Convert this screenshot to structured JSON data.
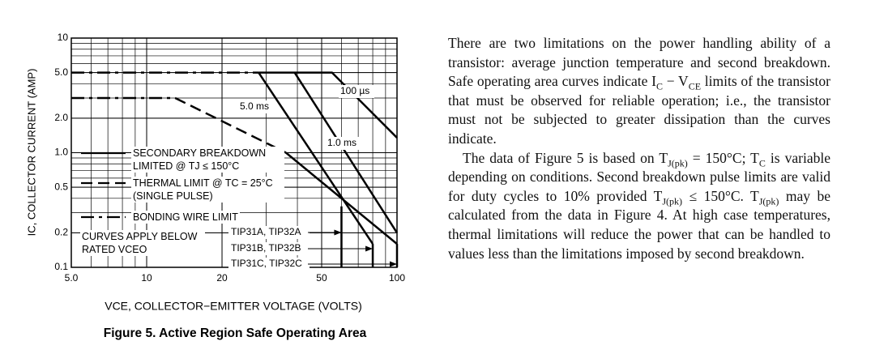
{
  "chart_data": {
    "type": "line",
    "log_x": true,
    "log_y": true,
    "xlabel": "VCE, COLLECTOR−EMITTER VOLTAGE (VOLTS)",
    "ylabel": "IC, COLLECTOR CURRENT (AMP)",
    "xlim": [
      5,
      100
    ],
    "ylim": [
      0.1,
      10
    ],
    "xticks": [
      {
        "value": 5,
        "label": "5.0"
      },
      10,
      20,
      50,
      100
    ],
    "yticks": [
      0.1,
      0.2,
      0.5,
      {
        "value": 1,
        "label": "1.0"
      },
      {
        "value": 2,
        "label": "2.0"
      },
      {
        "value": 5,
        "label": "5.0"
      },
      10
    ],
    "grid": true,
    "series": [
      {
        "color": "#000000",
        "dash": "dashdot",
        "x": [
          5,
          28
        ],
        "values": [
          5,
          5
        ]
      },
      {
        "color": "#000000",
        "dash": "dashdot",
        "x": [
          5,
          13
        ],
        "values": [
          3,
          3
        ]
      },
      {
        "color": "#000000",
        "dash": "dashed",
        "x": [
          13,
          36
        ],
        "values": [
          3,
          1
        ]
      },
      {
        "color": "#000000",
        "dash": "solid",
        "x": [
          36,
          100
        ],
        "values": [
          1,
          0.16
        ]
      },
      {
        "name": "5.0 ms",
        "color": "#000000",
        "dash": "solid",
        "x": [
          28,
          80
        ],
        "values": [
          5,
          0.16
        ]
      },
      {
        "name": "1.0 ms",
        "color": "#000000",
        "dash": "solid",
        "x": [
          39,
          100
        ],
        "values": [
          5,
          0.2
        ]
      },
      {
        "name": "100 µs",
        "color": "#000000",
        "dash": "solid",
        "x": [
          28,
          55,
          100
        ],
        "values": [
          5,
          5,
          1.35
        ]
      },
      {
        "name": "TIP31A, TIP32A",
        "color": "#000000",
        "dash": "solid",
        "x": [
          60,
          60
        ],
        "values": [
          0.34,
          0.1
        ]
      },
      {
        "name": "TIP31B, TIP32B",
        "color": "#000000",
        "dash": "solid",
        "x": [
          80,
          80
        ],
        "values": [
          0.16,
          0.1
        ]
      },
      {
        "name": "TIP31C, TIP32C",
        "color": "#000000",
        "dash": "solid",
        "x": [
          100,
          100
        ],
        "values": [
          0.16,
          0.1
        ]
      }
    ],
    "legend_entries": [
      {
        "label": "SECONDARY BREAKDOWN LIMITED @ TJ ≤ 150°C",
        "dash": "solid"
      },
      {
        "label": "THERMAL LIMIT @ TC = 25°C (SINGLE PULSE)",
        "dash": "dashed"
      },
      {
        "label": "BONDING WIRE LIMIT",
        "dash": "dashdot"
      }
    ],
    "annotations": [
      "CURVES APPLY BELOW RATED VCEO"
    ]
  },
  "caption": "Figure 5. Active Region Safe Operating Area",
  "body": {
    "paragraphs": [
      [
        {
          "t": "There are two limitations on the power handling ability of a transistor: average junction temperature and second breakdown. Safe operating area curves indicate I"
        },
        {
          "sub": "C"
        },
        {
          "t": " − V"
        },
        {
          "sub": "CE"
        },
        {
          "t": " limits of the transistor that must be observed for reliable operation; i.e., the transistor must not be subjected to greater dissipation than the curves indicate."
        }
      ],
      [
        {
          "t": "The data of Figure 5 is based on T"
        },
        {
          "sub": "J(pk)"
        },
        {
          "t": " = 150°C; T"
        },
        {
          "sub": "C"
        },
        {
          "t": " is variable depending on conditions. Second breakdown pulse limits are valid for duty cycles to 10% provided T"
        },
        {
          "sub": "J(pk)"
        },
        {
          "t": " ≤ 150°C. T"
        },
        {
          "sub": "J(pk)"
        },
        {
          "t": " may be calculated from the data in Figure 4. At high case temperatures, thermal limitations will reduce the power that can be handled to values less than the limitations imposed by second breakdown."
        }
      ]
    ]
  }
}
